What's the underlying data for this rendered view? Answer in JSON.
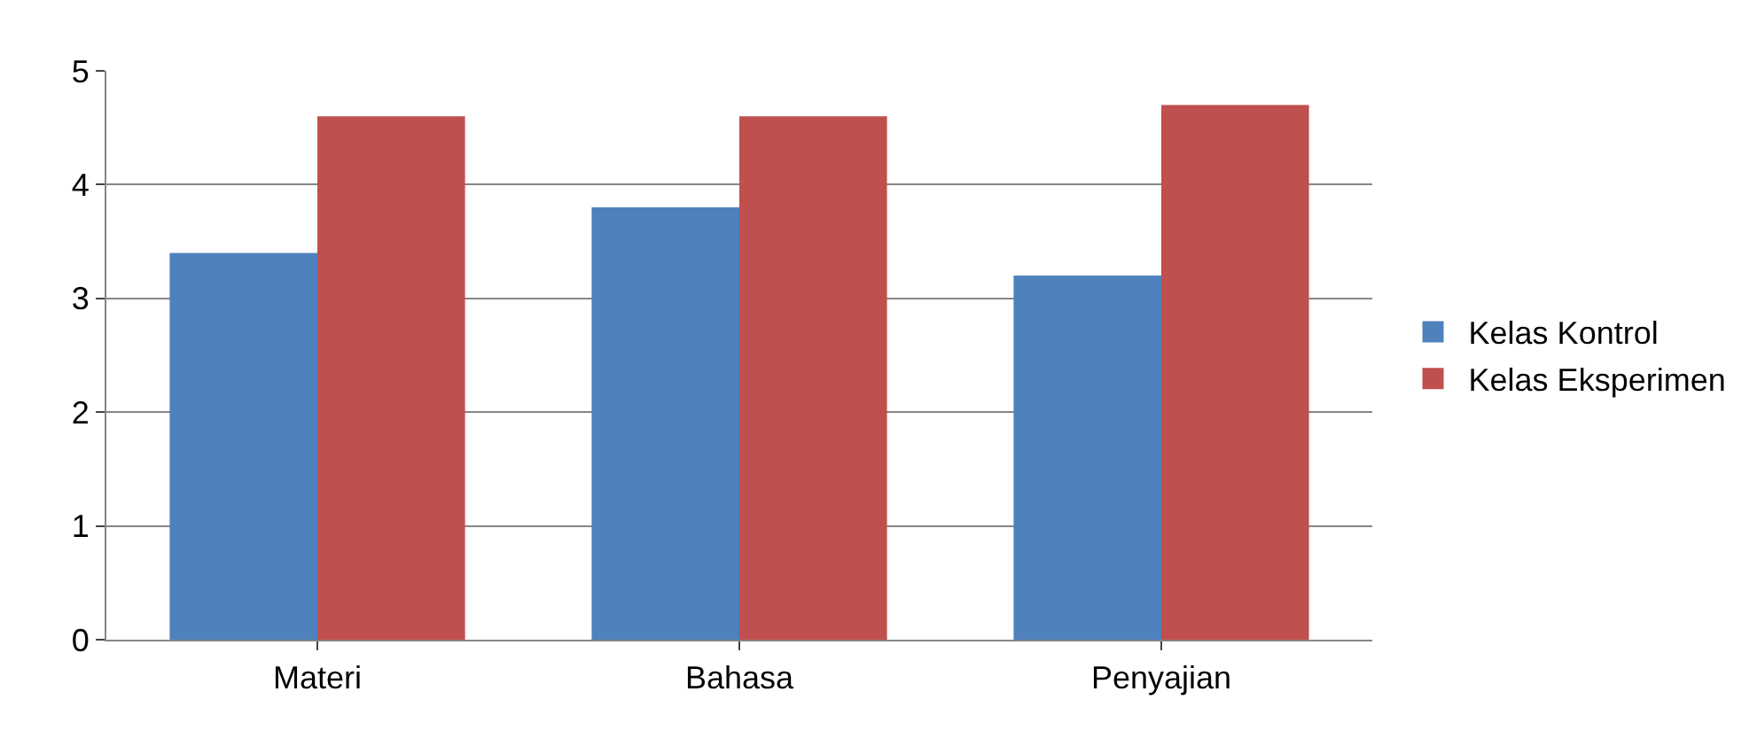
{
  "chart_data": {
    "type": "bar",
    "categories": [
      "Materi",
      "Bahasa",
      "Penyajian"
    ],
    "series": [
      {
        "name": "Kelas Kontrol",
        "color": "#4f81bd",
        "values": [
          3.4,
          3.8,
          3.2
        ]
      },
      {
        "name": "Kelas Eksperimen",
        "color": "#c0504d",
        "values": [
          4.6,
          4.6,
          4.7
        ]
      }
    ],
    "ylim": [
      0,
      5
    ],
    "yticks": [
      0,
      1,
      2,
      3,
      4,
      5
    ],
    "grid": "y",
    "legend": "right"
  }
}
